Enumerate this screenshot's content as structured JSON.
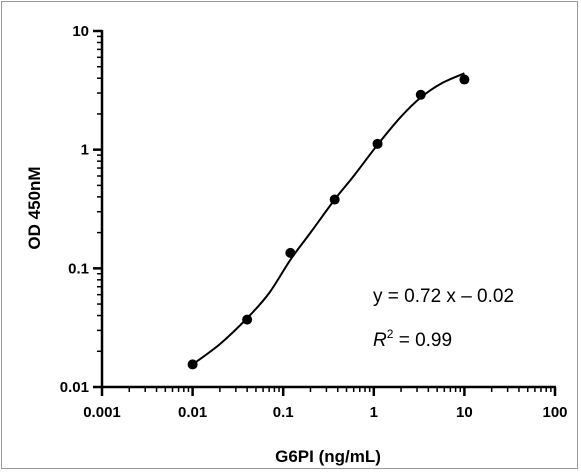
{
  "chart_data": {
    "type": "scatter",
    "xscale": "log",
    "yscale": "log",
    "xlim": [
      0.001,
      100
    ],
    "ylim": [
      0.01,
      10
    ],
    "xlabel": "G6PI (ng/mL)",
    "ylabel": "OD 450nM",
    "x_ticks": [
      {
        "value": 0.001,
        "label": "0.001"
      },
      {
        "value": 0.01,
        "label": "0.01"
      },
      {
        "value": 0.1,
        "label": "0.1"
      },
      {
        "value": 1,
        "label": "1"
      },
      {
        "value": 10,
        "label": "10"
      },
      {
        "value": 100,
        "label": "100"
      }
    ],
    "y_ticks": [
      {
        "value": 0.01,
        "label": "0.01"
      },
      {
        "value": 0.1,
        "label": "0.1"
      },
      {
        "value": 1,
        "label": "1"
      },
      {
        "value": 10,
        "label": "10"
      }
    ],
    "points": [
      {
        "x": 0.01,
        "y": 0.0155
      },
      {
        "x": 0.04,
        "y": 0.037
      },
      {
        "x": 0.12,
        "y": 0.135
      },
      {
        "x": 0.37,
        "y": 0.38
      },
      {
        "x": 1.1,
        "y": 1.12
      },
      {
        "x": 3.3,
        "y": 2.9
      },
      {
        "x": 10,
        "y": 3.9
      }
    ],
    "fit_curve": [
      {
        "x": 0.01,
        "y": 0.0155
      },
      {
        "x": 0.02,
        "y": 0.023
      },
      {
        "x": 0.04,
        "y": 0.038
      },
      {
        "x": 0.07,
        "y": 0.062
      },
      {
        "x": 0.12,
        "y": 0.118
      },
      {
        "x": 0.2,
        "y": 0.2
      },
      {
        "x": 0.37,
        "y": 0.38
      },
      {
        "x": 0.6,
        "y": 0.6
      },
      {
        "x": 1.1,
        "y": 1.1
      },
      {
        "x": 2,
        "y": 1.9
      },
      {
        "x": 3.3,
        "y": 2.75
      },
      {
        "x": 5.5,
        "y": 3.6
      },
      {
        "x": 10,
        "y": 4.4
      }
    ],
    "annotations": {
      "equation": "y = 0.72 x – 0.02",
      "r2_label": "R",
      "r2_sup": "2",
      "r2_value": " = 0.99"
    },
    "grid": false,
    "legend": "none"
  }
}
